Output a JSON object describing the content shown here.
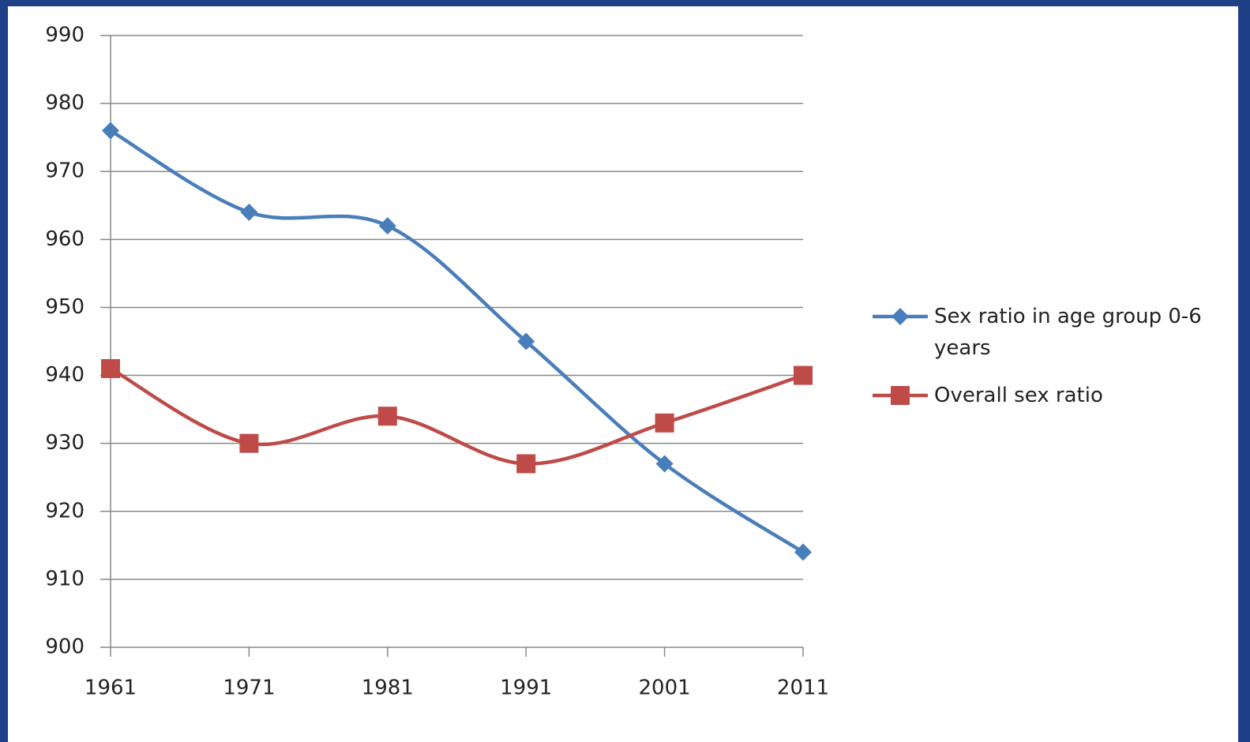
{
  "chart_data": {
    "type": "line",
    "categories": [
      "1961",
      "1971",
      "1981",
      "1991",
      "2001",
      "2011"
    ],
    "series": [
      {
        "name": "Sex ratio in age group 0-6 years",
        "color": "#4a7ebb",
        "marker": "diamond",
        "values": [
          976,
          964,
          962,
          945,
          927,
          914
        ]
      },
      {
        "name": "Overall sex ratio",
        "color": "#be4b48",
        "marker": "square",
        "values": [
          941,
          930,
          934,
          927,
          933,
          940
        ]
      }
    ],
    "ylim": [
      900,
      990
    ],
    "yticks": [
      900,
      910,
      920,
      930,
      940,
      950,
      960,
      970,
      980,
      990
    ],
    "grid": true,
    "smooth": true,
    "legend": "right"
  }
}
